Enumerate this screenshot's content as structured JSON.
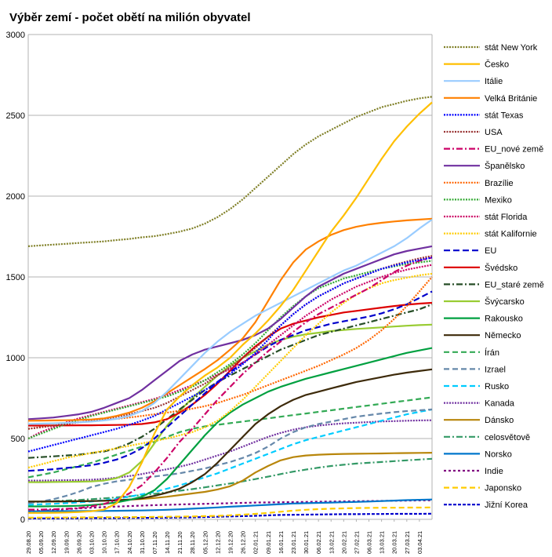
{
  "chart_data": {
    "type": "line",
    "title": "Výběr zemí - počet obětí na milión obyvatel",
    "xlabel": "",
    "ylabel": "",
    "ylim": [
      0,
      3000
    ],
    "y_ticks": [
      0,
      500,
      1000,
      1500,
      2000,
      2500,
      3000
    ],
    "grid": "horizontal",
    "legend_position": "right",
    "x_ticks": [
      "29.08.20",
      "05.09.20",
      "12.09.20",
      "19.09.20",
      "26.09.20",
      "03.10.20",
      "10.10.20",
      "17.10.20",
      "24.10.20",
      "31.10.20",
      "07.11.20",
      "14.11.20",
      "21.11.20",
      "28.11.20",
      "05.12.20",
      "12.12.20",
      "19.12.20",
      "26.12.20",
      "02.01.21",
      "09.01.21",
      "16.01.21",
      "23.01.21",
      "30.01.21",
      "06.02.21",
      "13.02.21",
      "20.02.21",
      "27.02.21",
      "06.03.21",
      "13.03.21",
      "20.03.21",
      "27.03.21",
      "03.04.21"
    ],
    "x_points": [
      0,
      7,
      14,
      21,
      28,
      35,
      42,
      49,
      56,
      63,
      70,
      77,
      84,
      91,
      98,
      105,
      112,
      119,
      126,
      133,
      140,
      147,
      154,
      161,
      168,
      175,
      182,
      189,
      196,
      203,
      210,
      217,
      224
    ],
    "series": [
      {
        "name": "stát New York",
        "color": "#7f7f26",
        "dash": "2,1.5",
        "values": [
          1690,
          1695,
          1700,
          1705,
          1710,
          1715,
          1720,
          1728,
          1735,
          1745,
          1752,
          1765,
          1780,
          1800,
          1830,
          1870,
          1920,
          1980,
          2050,
          2120,
          2190,
          2260,
          2320,
          2370,
          2410,
          2450,
          2490,
          2520,
          2550,
          2570,
          2590,
          2605,
          2615
        ]
      },
      {
        "name": "Česko",
        "color": "#ffbf00",
        "dash": "",
        "values": [
          40,
          40,
          41,
          42,
          45,
          50,
          60,
          100,
          200,
          350,
          530,
          680,
          760,
          830,
          890,
          940,
          1000,
          1080,
          1150,
          1230,
          1320,
          1420,
          1540,
          1660,
          1780,
          1880,
          1990,
          2110,
          2230,
          2340,
          2430,
          2510,
          2580
        ]
      },
      {
        "name": "Itálie",
        "color": "#99ccff",
        "dash": "",
        "values": [
          590,
          592,
          594,
          597,
          600,
          605,
          612,
          622,
          640,
          670,
          720,
          790,
          870,
          950,
          1030,
          1100,
          1160,
          1210,
          1260,
          1300,
          1340,
          1380,
          1420,
          1460,
          1500,
          1540,
          1570,
          1610,
          1650,
          1690,
          1740,
          1800,
          1855
        ]
      },
      {
        "name": "Velká Británie",
        "color": "#ff8000",
        "dash": "",
        "values": [
          610,
          611,
          612,
          613,
          615,
          618,
          625,
          640,
          660,
          690,
          730,
          780,
          830,
          880,
          930,
          985,
          1050,
          1120,
          1220,
          1350,
          1480,
          1590,
          1670,
          1720,
          1760,
          1790,
          1810,
          1825,
          1835,
          1843,
          1850,
          1855,
          1860
        ]
      },
      {
        "name": "stát Texas",
        "color": "#0000ff",
        "dash": "2,1.5",
        "values": [
          420,
          440,
          460,
          480,
          500,
          520,
          540,
          560,
          585,
          610,
          640,
          680,
          720,
          760,
          800,
          845,
          900,
          960,
          1030,
          1110,
          1200,
          1270,
          1330,
          1380,
          1420,
          1460,
          1490,
          1520,
          1550,
          1570,
          1590,
          1605,
          1620
        ]
      },
      {
        "name": "USA",
        "color": "#993333",
        "dash": "2,1.5",
        "values": [
          560,
          570,
          580,
          590,
          600,
          610,
          620,
          635,
          650,
          670,
          690,
          720,
          760,
          800,
          840,
          890,
          940,
          1000,
          1060,
          1130,
          1200,
          1270,
          1330,
          1380,
          1420,
          1460,
          1490,
          1520,
          1550,
          1575,
          1595,
          1615,
          1630
        ]
      },
      {
        "name": "EU_nové země",
        "color": "#cc0066",
        "dash": "8,3,2,3",
        "values": [
          60,
          60,
          62,
          65,
          70,
          80,
          95,
          120,
          160,
          210,
          290,
          380,
          480,
          560,
          650,
          740,
          820,
          900,
          970,
          1040,
          1100,
          1160,
          1220,
          1270,
          1310,
          1350,
          1390,
          1430,
          1480,
          1530,
          1570,
          1600,
          1620
        ]
      },
      {
        "name": "Španělsko",
        "color": "#7030a0",
        "dash": "",
        "values": [
          620,
          625,
          630,
          640,
          650,
          665,
          690,
          720,
          750,
          800,
          860,
          920,
          980,
          1020,
          1050,
          1070,
          1090,
          1110,
          1140,
          1180,
          1240,
          1310,
          1380,
          1440,
          1480,
          1520,
          1550,
          1580,
          1610,
          1640,
          1660,
          1675,
          1690
        ]
      },
      {
        "name": "Brazílie",
        "color": "#ff6600",
        "dash": "2,1.5",
        "values": [
          560,
          570,
          580,
          590,
          600,
          608,
          615,
          622,
          630,
          640,
          650,
          660,
          672,
          685,
          700,
          720,
          745,
          770,
          800,
          830,
          860,
          890,
          920,
          950,
          985,
          1020,
          1060,
          1110,
          1170,
          1240,
          1320,
          1410,
          1500
        ]
      },
      {
        "name": "Mexiko",
        "color": "#33aa33",
        "dash": "2,1.5",
        "values": [
          500,
          530,
          560,
          590,
          615,
          640,
          660,
          680,
          700,
          720,
          740,
          760,
          790,
          820,
          860,
          910,
          960,
          1020,
          1090,
          1170,
          1250,
          1320,
          1380,
          1430,
          1460,
          1490,
          1510,
          1530,
          1550,
          1565,
          1580,
          1590,
          1600
        ]
      },
      {
        "name": "stát Florida",
        "color": "#cc0066",
        "dash": "2,1.5",
        "values": [
          500,
          540,
          570,
          600,
          625,
          645,
          665,
          685,
          705,
          725,
          745,
          770,
          800,
          830,
          860,
          895,
          930,
          970,
          1020,
          1080,
          1140,
          1200,
          1260,
          1310,
          1360,
          1400,
          1440,
          1470,
          1500,
          1525,
          1545,
          1560,
          1575
        ]
      },
      {
        "name": "stát Kalifornie",
        "color": "#ffcc00",
        "dash": "2,1.5",
        "values": [
          320,
          340,
          360,
          380,
          395,
          410,
          425,
          440,
          455,
          470,
          485,
          500,
          520,
          540,
          570,
          610,
          670,
          740,
          820,
          900,
          980,
          1060,
          1140,
          1210,
          1280,
          1340,
          1390,
          1430,
          1460,
          1480,
          1495,
          1510,
          1520
        ]
      },
      {
        "name": "EU",
        "color": "#0000cc",
        "dash": "8,4",
        "values": [
          300,
          305,
          310,
          318,
          325,
          335,
          350,
          370,
          400,
          440,
          500,
          570,
          640,
          710,
          780,
          850,
          910,
          970,
          1020,
          1070,
          1110,
          1140,
          1170,
          1190,
          1210,
          1225,
          1240,
          1255,
          1275,
          1300,
          1330,
          1370,
          1410
        ]
      },
      {
        "name": "Švédsko",
        "color": "#dd0000",
        "dash": "",
        "values": [
          580,
          580,
          581,
          581,
          582,
          582,
          583,
          584,
          586,
          590,
          600,
          620,
          660,
          710,
          770,
          840,
          920,
          1000,
          1070,
          1130,
          1180,
          1210,
          1230,
          1250,
          1265,
          1280,
          1290,
          1300,
          1310,
          1320,
          1328,
          1335,
          1340
        ]
      },
      {
        "name": "EU_staré země",
        "color": "#264d26",
        "dash": "8,3,2,3",
        "values": [
          380,
          385,
          390,
          395,
          400,
          410,
          420,
          440,
          470,
          510,
          560,
          620,
          680,
          740,
          800,
          850,
          890,
          930,
          970,
          1010,
          1050,
          1080,
          1110,
          1140,
          1160,
          1180,
          1200,
          1220,
          1240,
          1260,
          1280,
          1300,
          1330
        ]
      },
      {
        "name": "Švýcarsko",
        "color": "#99cc33",
        "dash": "",
        "values": [
          230,
          230,
          231,
          232,
          233,
          235,
          240,
          255,
          290,
          360,
          470,
          580,
          670,
          750,
          820,
          890,
          950,
          1000,
          1040,
          1080,
          1110,
          1130,
          1145,
          1155,
          1165,
          1172,
          1178,
          1183,
          1188,
          1193,
          1198,
          1202,
          1205
        ]
      },
      {
        "name": "Rakousko",
        "color": "#00a040",
        "dash": "",
        "values": [
          80,
          80,
          81,
          82,
          84,
          88,
          95,
          105,
          120,
          140,
          180,
          250,
          340,
          430,
          520,
          600,
          660,
          710,
          750,
          790,
          820,
          845,
          870,
          890,
          910,
          930,
          950,
          970,
          990,
          1010,
          1030,
          1045,
          1060
        ]
      },
      {
        "name": "Německo",
        "color": "#3d2a0a",
        "dash": "",
        "values": [
          110,
          110,
          111,
          111,
          112,
          113,
          115,
          118,
          122,
          130,
          145,
          165,
          190,
          230,
          280,
          350,
          430,
          510,
          590,
          650,
          700,
          740,
          770,
          790,
          810,
          830,
          850,
          865,
          880,
          895,
          908,
          918,
          928
        ]
      },
      {
        "name": "Írán",
        "color": "#33aa55",
        "dash": "7,4",
        "values": [
          260,
          275,
          290,
          310,
          330,
          350,
          375,
          400,
          425,
          450,
          480,
          510,
          540,
          560,
          575,
          585,
          595,
          605,
          615,
          625,
          635,
          645,
          655,
          665,
          675,
          685,
          695,
          705,
          715,
          725,
          735,
          745,
          755
        ]
      },
      {
        "name": "Izrael",
        "color": "#6688aa",
        "dash": "7,4",
        "values": [
          100,
          110,
          125,
          145,
          170,
          200,
          220,
          235,
          245,
          255,
          265,
          275,
          285,
          300,
          315,
          335,
          355,
          380,
          410,
          450,
          500,
          540,
          570,
          590,
          605,
          620,
          635,
          645,
          655,
          663,
          670,
          675,
          680
        ]
      },
      {
        "name": "Rusko",
        "color": "#00ccff",
        "dash": "7,4",
        "values": [
          90,
          93,
          96,
          100,
          105,
          110,
          118,
          128,
          140,
          155,
          170,
          190,
          210,
          235,
          260,
          285,
          315,
          345,
          375,
          405,
          435,
          465,
          490,
          510,
          530,
          550,
          570,
          590,
          610,
          630,
          650,
          665,
          680
        ]
      },
      {
        "name": "Kanada",
        "color": "#7030a0",
        "dash": "2,1.5",
        "values": [
          240,
          240,
          241,
          242,
          243,
          245,
          250,
          258,
          268,
          280,
          295,
          310,
          325,
          345,
          370,
          395,
          420,
          450,
          480,
          510,
          535,
          555,
          570,
          580,
          588,
          594,
          598,
          602,
          606,
          608,
          610,
          612,
          613
        ]
      },
      {
        "name": "Dánsko",
        "color": "#b8860b",
        "dash": "",
        "values": [
          110,
          110,
          110,
          111,
          112,
          113,
          115,
          118,
          122,
          126,
          132,
          140,
          150,
          160,
          170,
          185,
          205,
          240,
          290,
          330,
          365,
          385,
          395,
          400,
          403,
          405,
          406,
          407,
          408,
          409,
          410,
          411,
          412
        ]
      },
      {
        "name": "celosvětově",
        "color": "#339966",
        "dash": "8,3,2,3",
        "values": [
          105,
          108,
          112,
          116,
          120,
          125,
          130,
          136,
          142,
          150,
          158,
          167,
          177,
          187,
          198,
          210,
          222,
          235,
          249,
          264,
          280,
          295,
          308,
          320,
          330,
          338,
          345,
          350,
          355,
          360,
          365,
          370,
          375
        ]
      },
      {
        "name": "Norsko",
        "color": "#0077cc",
        "dash": "",
        "values": [
          50,
          50,
          51,
          51,
          51,
          52,
          52,
          53,
          54,
          55,
          57,
          59,
          62,
          66,
          70,
          74,
          78,
          82,
          86,
          90,
          94,
          98,
          100,
          102,
          104,
          106,
          108,
          110,
          113,
          116,
          119,
          121,
          123
        ]
      },
      {
        "name": "Indie",
        "color": "#800080",
        "dash": "3,3",
        "values": [
          48,
          53,
          58,
          63,
          68,
          72,
          76,
          79,
          82,
          85,
          88,
          90,
          92,
          94,
          96,
          98,
          100,
          102,
          104,
          105,
          106,
          107,
          108,
          109,
          110,
          111,
          112,
          113,
          114,
          115,
          116,
          117,
          118
        ]
      },
      {
        "name": "Japonsko",
        "color": "#ffcc00",
        "dash": "7,4",
        "values": [
          10,
          10,
          11,
          11,
          12,
          12,
          13,
          13,
          14,
          14,
          15,
          16,
          17,
          18,
          20,
          22,
          25,
          29,
          34,
          40,
          47,
          54,
          59,
          63,
          66,
          68,
          70,
          71,
          72,
          72,
          73,
          73,
          74
        ]
      },
      {
        "name": "Jižní Korea",
        "color": "#0000cc",
        "dash": "4,2",
        "values": [
          6,
          6,
          6,
          7,
          7,
          8,
          8,
          8,
          9,
          9,
          9,
          10,
          11,
          12,
          14,
          16,
          18,
          20,
          22,
          25,
          27,
          28,
          29,
          30,
          31,
          32,
          32,
          33,
          33,
          34,
          34,
          34,
          35
        ]
      }
    ]
  }
}
